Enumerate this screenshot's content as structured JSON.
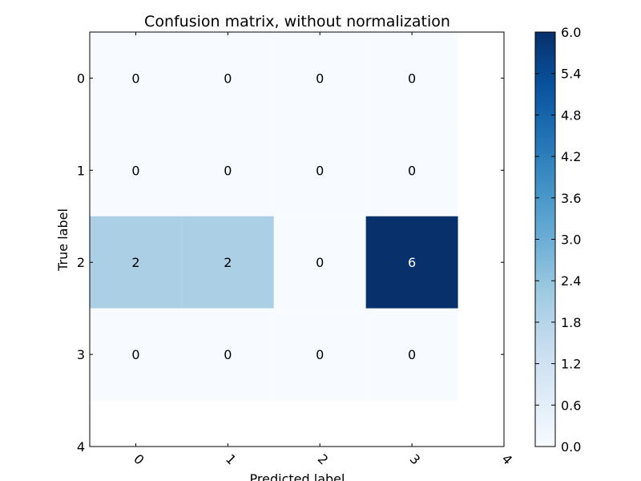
{
  "chart_data": {
    "type": "heatmap",
    "title": "Confusion matrix, without normalization",
    "xlabel": "Predicted label",
    "ylabel": "True label",
    "x_ticks": [
      "0",
      "1",
      "2",
      "3",
      "4"
    ],
    "y_ticks": [
      "0",
      "1",
      "2",
      "3",
      "4"
    ],
    "x_range": [
      -0.5,
      4.0
    ],
    "y_range": [
      -0.5,
      4.0
    ],
    "rows": [
      [
        0,
        0,
        0,
        0
      ],
      [
        0,
        0,
        0,
        0
      ],
      [
        2,
        2,
        0,
        6
      ],
      [
        0,
        0,
        0,
        0
      ]
    ],
    "cell_labels": [
      [
        "0",
        "0",
        "0",
        "0"
      ],
      [
        "0",
        "0",
        "0",
        "0"
      ],
      [
        "2",
        "2",
        "0",
        "6"
      ],
      [
        "0",
        "0",
        "0",
        "0"
      ]
    ],
    "colormap": "Blues",
    "colorbar": {
      "min": 0,
      "max": 6,
      "ticks": [
        "0.0",
        "0.6",
        "1.2",
        "1.8",
        "2.4",
        "3.0",
        "3.6",
        "4.2",
        "4.8",
        "5.4",
        "6.0"
      ]
    },
    "grid": false,
    "legend": "none"
  }
}
